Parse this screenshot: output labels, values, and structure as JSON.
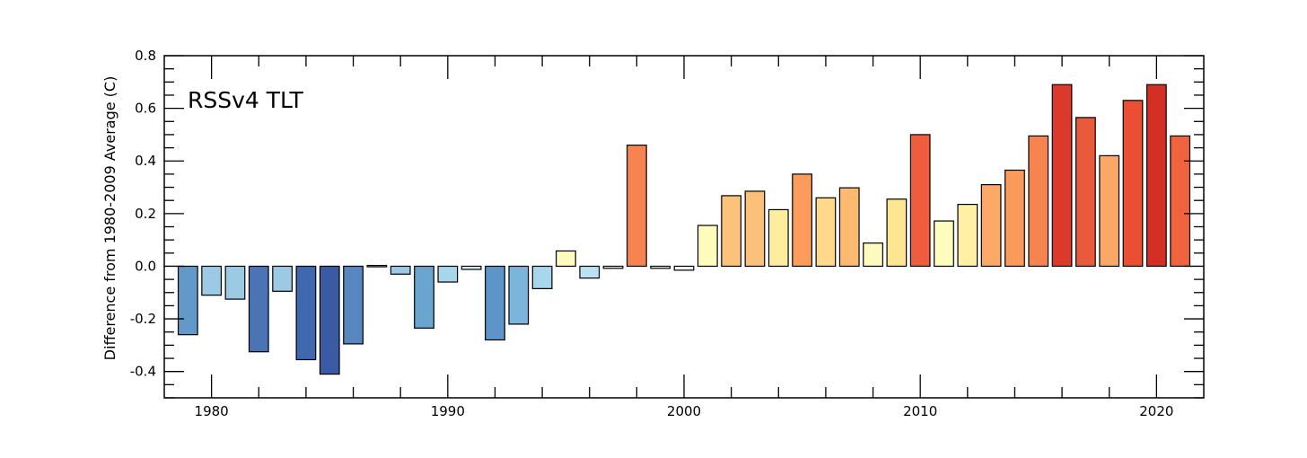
{
  "chart_data": {
    "type": "bar",
    "title": "RSSv4 TLT",
    "xlabel": "",
    "ylabel": "Difference from 1980-2009 Average (C)",
    "xlim": [
      1978,
      2022
    ],
    "ylim": [
      -0.5,
      0.8
    ],
    "x_ticks": [
      1980,
      1990,
      2000,
      2010,
      2020
    ],
    "y_ticks": [
      -0.4,
      -0.2,
      0.0,
      0.2,
      0.4,
      0.6,
      0.8
    ],
    "y_tick_labels": [
      "-0.4",
      "-0.2",
      "0.0",
      "0.2",
      "0.4",
      "0.6",
      "0.8"
    ],
    "grid": false,
    "years": [
      1979,
      1980,
      1981,
      1982,
      1983,
      1984,
      1985,
      1986,
      1987,
      1988,
      1989,
      1990,
      1991,
      1992,
      1993,
      1994,
      1995,
      1996,
      1997,
      1998,
      1999,
      2000,
      2001,
      2002,
      2003,
      2004,
      2005,
      2006,
      2007,
      2008,
      2009,
      2010,
      2011,
      2012,
      2013,
      2014,
      2015,
      2016,
      2017,
      2018,
      2019,
      2020,
      2021
    ],
    "values": [
      -0.26,
      -0.11,
      -0.125,
      -0.325,
      -0.095,
      -0.355,
      -0.41,
      -0.295,
      0.003,
      -0.03,
      -0.235,
      -0.06,
      -0.012,
      -0.28,
      -0.22,
      -0.085,
      0.058,
      -0.045,
      -0.008,
      0.46,
      -0.008,
      -0.015,
      0.155,
      0.268,
      0.285,
      0.215,
      0.35,
      0.26,
      0.298,
      0.088,
      0.255,
      0.5,
      0.172,
      0.235,
      0.31,
      0.365,
      0.495,
      0.69,
      0.565,
      0.42,
      0.63,
      0.69,
      0.495
    ],
    "colors": [
      "#6399c8",
      "#9ccae4",
      "#9ccae4",
      "#4a74b3",
      "#9ccae4",
      "#4068ae",
      "#3a5ba4",
      "#5887c0",
      "#e6f4f9",
      "#9ccae4",
      "#6aa5d0",
      "#a8d6ea",
      "#dcf0f7",
      "#5e95c8",
      "#7bb5dc",
      "#a8d6ea",
      "#fffac0",
      "#b9e1ef",
      "#f2f9fa",
      "#f78450",
      "#f2f9fa",
      "#eff8fa",
      "#fffcbe",
      "#fbc27a",
      "#fbc07a",
      "#fdee9e",
      "#fb9b5c",
      "#fed98c",
      "#fbba70",
      "#fffac0",
      "#fde592",
      "#f05c3e",
      "#fffdbe",
      "#fff0a6",
      "#fba868",
      "#fa9b5c",
      "#f7834f",
      "#db3a2b",
      "#e95a3c",
      "#fba866",
      "#ea4f34",
      "#d42f25",
      "#f0633f"
    ]
  }
}
